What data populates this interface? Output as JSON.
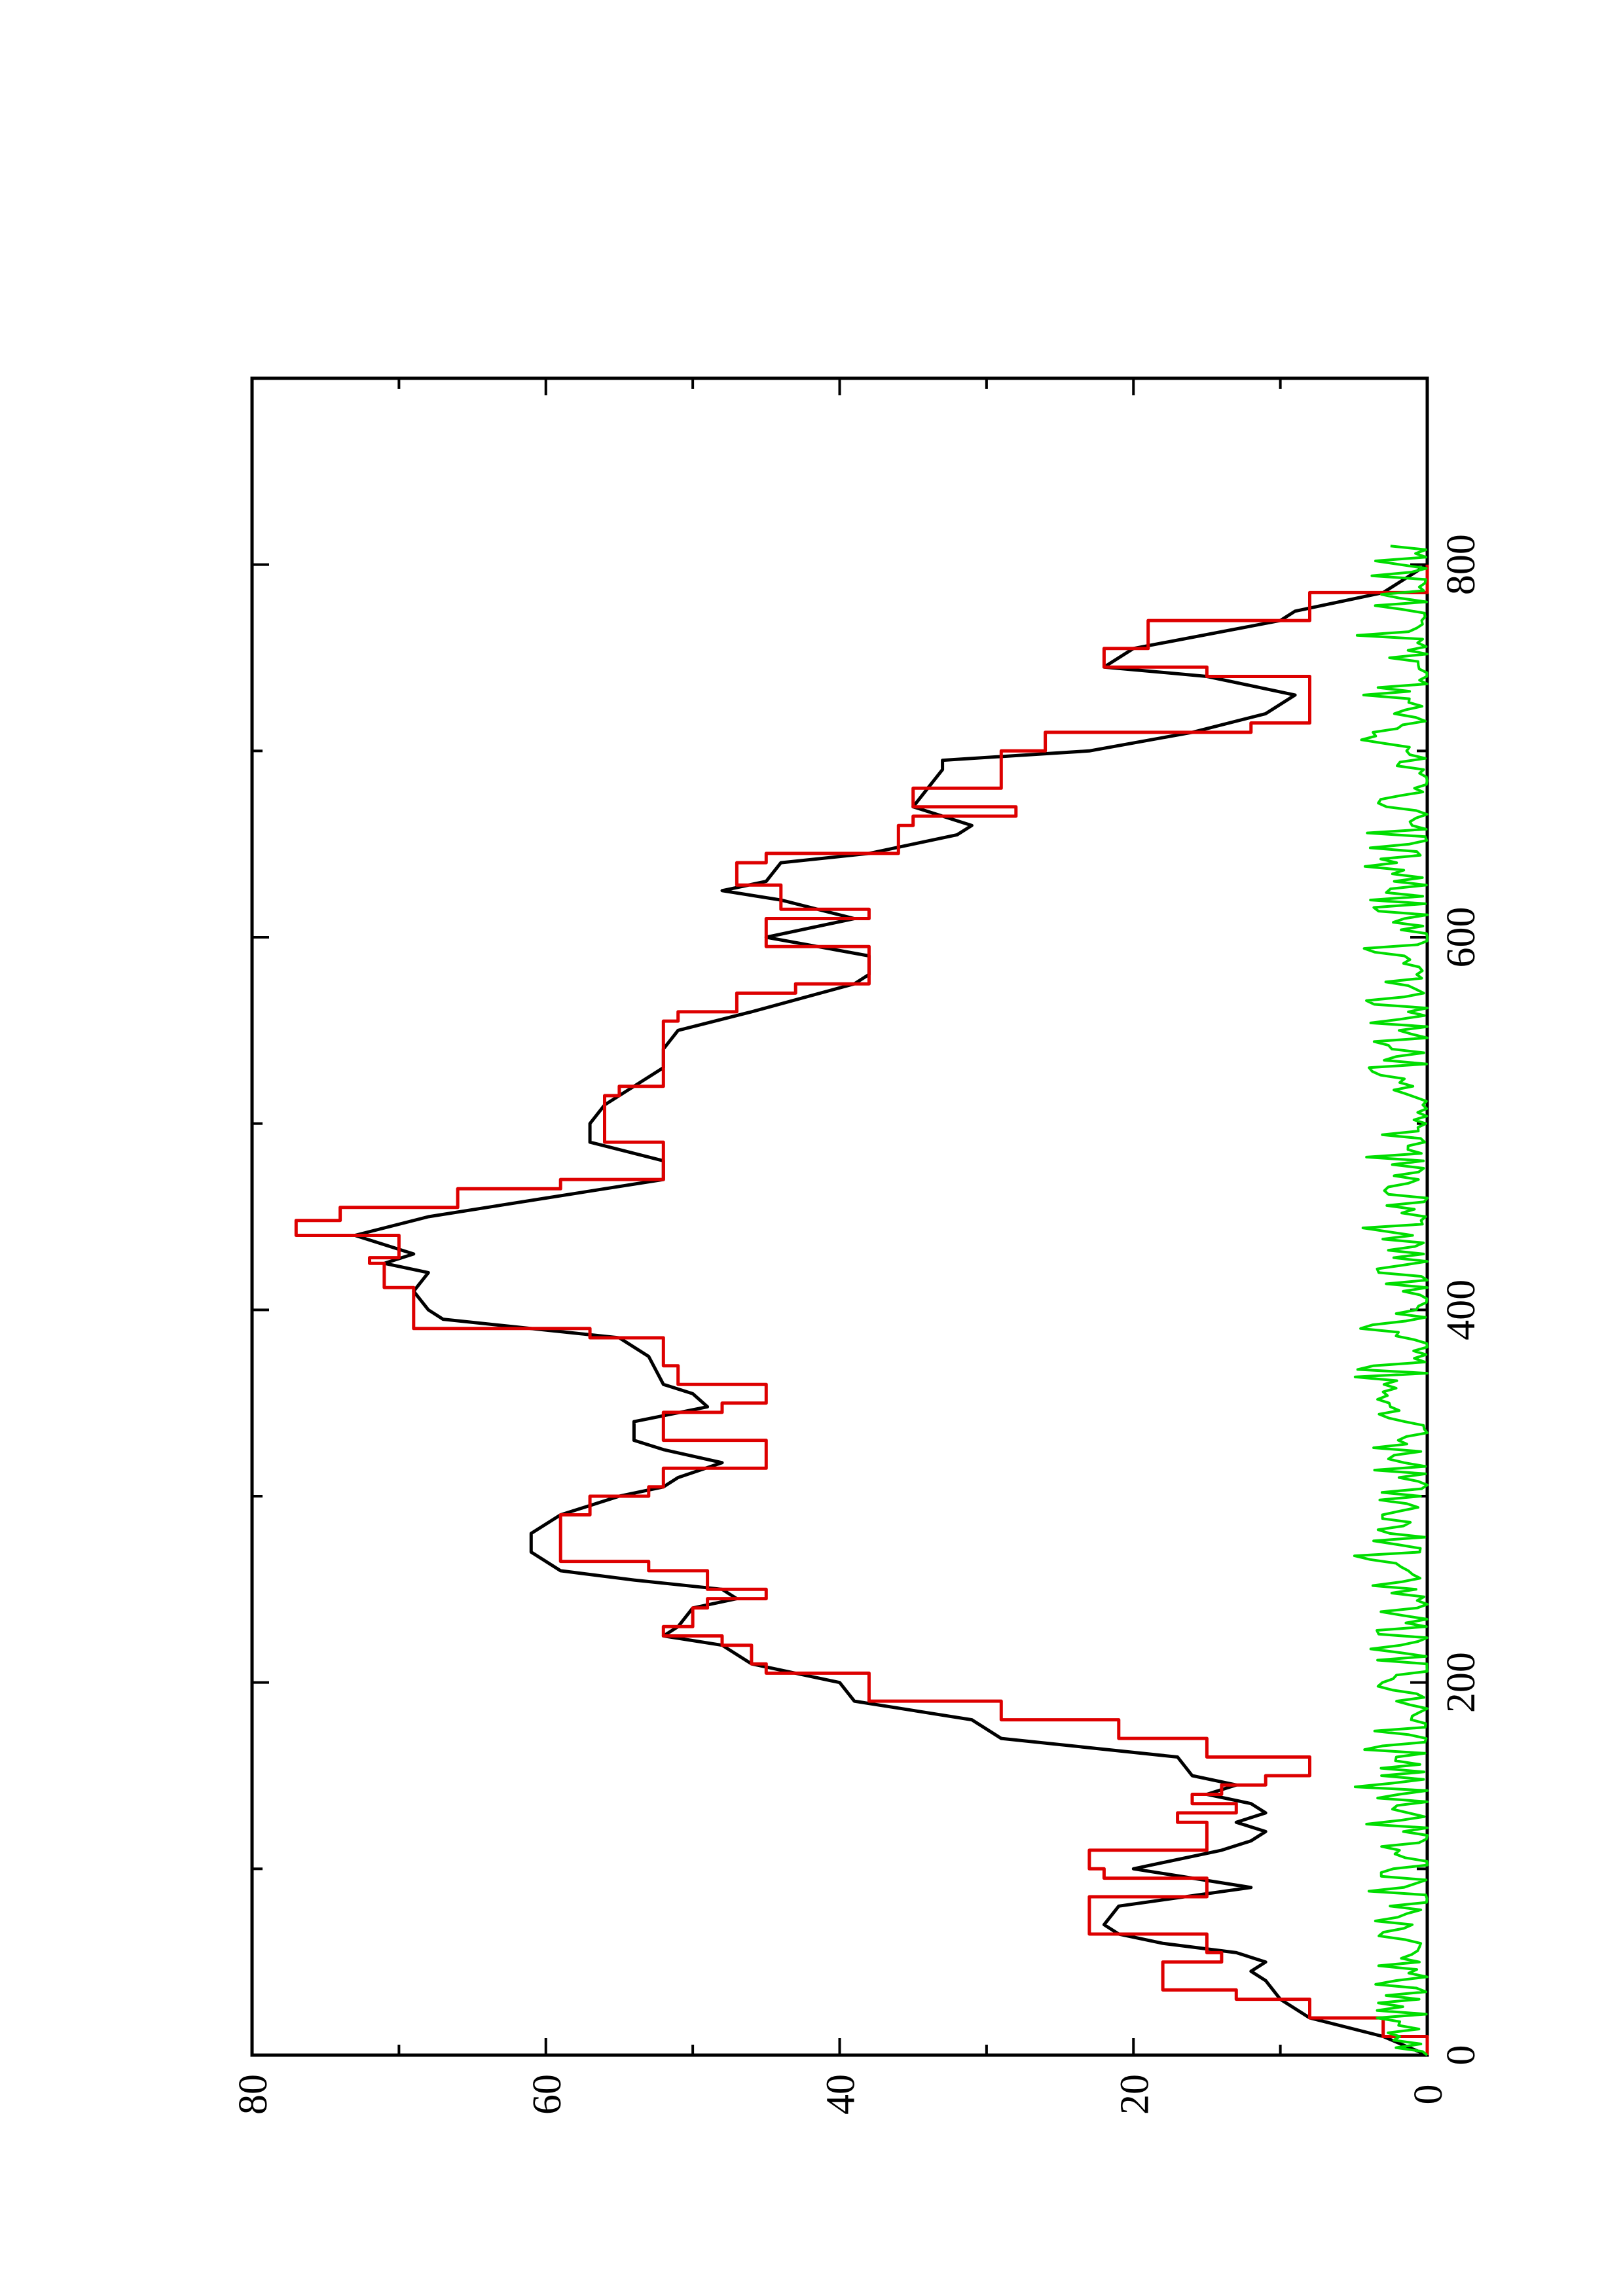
{
  "chart_data": {
    "type": "line",
    "orientation": "rotated-90-counterclockwise",
    "title": "",
    "xlabel": "",
    "ylabel": "",
    "xlim": [
      0,
      900
    ],
    "ylim": [
      0,
      80
    ],
    "x_ticks": [
      0,
      200,
      400,
      600,
      800
    ],
    "y_ticks": [
      0,
      20,
      40,
      60,
      80
    ],
    "x_tick_labels": [
      "0",
      "200",
      "400",
      "600",
      "800"
    ],
    "y_tick_labels": [
      "0",
      "20",
      "40",
      "60",
      "80"
    ],
    "grid": false,
    "legend": "none",
    "series": [
      {
        "color": "#000000",
        "style": "smooth",
        "points": [
          [
            0,
            0
          ],
          [
            10,
            3
          ],
          [
            20,
            8
          ],
          [
            30,
            10
          ],
          [
            40,
            11
          ],
          [
            45,
            12
          ],
          [
            50,
            11
          ],
          [
            55,
            13
          ],
          [
            60,
            18
          ],
          [
            65,
            21
          ],
          [
            70,
            22
          ],
          [
            80,
            21
          ],
          [
            90,
            12
          ],
          [
            100,
            20
          ],
          [
            110,
            14
          ],
          [
            115,
            12
          ],
          [
            120,
            11
          ],
          [
            125,
            13
          ],
          [
            130,
            11
          ],
          [
            135,
            12
          ],
          [
            140,
            15
          ],
          [
            145,
            13
          ],
          [
            150,
            16
          ],
          [
            160,
            17
          ],
          [
            170,
            29
          ],
          [
            180,
            31
          ],
          [
            190,
            39
          ],
          [
            200,
            40
          ],
          [
            210,
            46
          ],
          [
            220,
            48
          ],
          [
            225,
            52
          ],
          [
            230,
            51
          ],
          [
            240,
            50
          ],
          [
            245,
            47
          ],
          [
            250,
            48
          ],
          [
            255,
            54
          ],
          [
            260,
            59
          ],
          [
            270,
            61
          ],
          [
            280,
            61
          ],
          [
            290,
            59
          ],
          [
            300,
            55
          ],
          [
            305,
            52
          ],
          [
            310,
            51
          ],
          [
            318,
            48
          ],
          [
            325,
            52
          ],
          [
            330,
            54
          ],
          [
            340,
            54
          ],
          [
            348,
            49
          ],
          [
            355,
            50
          ],
          [
            360,
            52
          ],
          [
            375,
            53
          ],
          [
            385,
            55
          ],
          [
            395,
            67
          ],
          [
            400,
            68
          ],
          [
            410,
            69
          ],
          [
            420,
            68
          ],
          [
            425,
            71
          ],
          [
            430,
            69
          ],
          [
            440,
            73
          ],
          [
            450,
            68
          ],
          [
            460,
            60
          ],
          [
            470,
            52
          ],
          [
            480,
            52
          ],
          [
            490,
            57
          ],
          [
            500,
            57
          ],
          [
            510,
            56
          ],
          [
            520,
            54
          ],
          [
            530,
            52
          ],
          [
            540,
            52
          ],
          [
            550,
            51
          ],
          [
            560,
            46
          ],
          [
            575,
            39
          ],
          [
            580,
            38
          ],
          [
            590,
            38
          ],
          [
            600,
            45
          ],
          [
            610,
            39
          ],
          [
            620,
            44
          ],
          [
            625,
            48
          ],
          [
            630,
            45
          ],
          [
            640,
            44
          ],
          [
            645,
            38
          ],
          [
            650,
            35
          ],
          [
            655,
            32
          ],
          [
            660,
            31
          ],
          [
            670,
            35
          ],
          [
            680,
            34
          ],
          [
            690,
            33
          ],
          [
            695,
            33
          ],
          [
            700,
            23
          ],
          [
            710,
            16
          ],
          [
            720,
            11
          ],
          [
            730,
            9
          ],
          [
            740,
            15
          ],
          [
            745,
            22
          ],
          [
            755,
            20
          ],
          [
            770,
            10
          ],
          [
            775,
            9
          ],
          [
            785,
            3
          ],
          [
            800,
            0
          ]
        ]
      },
      {
        "color": "#dd0000",
        "style": "step",
        "points": [
          [
            0,
            0
          ],
          [
            10,
            3
          ],
          [
            20,
            8
          ],
          [
            30,
            13
          ],
          [
            35,
            18
          ],
          [
            50,
            14
          ],
          [
            55,
            15
          ],
          [
            65,
            23
          ],
          [
            80,
            23
          ],
          [
            85,
            15
          ],
          [
            95,
            22
          ],
          [
            100,
            23
          ],
          [
            110,
            15
          ],
          [
            120,
            15
          ],
          [
            125,
            17
          ],
          [
            130,
            13
          ],
          [
            135,
            16
          ],
          [
            140,
            14
          ],
          [
            145,
            11
          ],
          [
            150,
            8
          ],
          [
            160,
            15
          ],
          [
            170,
            21
          ],
          [
            180,
            29
          ],
          [
            190,
            38
          ],
          [
            200,
            38
          ],
          [
            205,
            45
          ],
          [
            210,
            46
          ],
          [
            220,
            48
          ],
          [
            225,
            52
          ],
          [
            230,
            50
          ],
          [
            240,
            49
          ],
          [
            245,
            45
          ],
          [
            250,
            49
          ],
          [
            260,
            53
          ],
          [
            265,
            59
          ],
          [
            280,
            59
          ],
          [
            290,
            57
          ],
          [
            300,
            53
          ],
          [
            305,
            52
          ],
          [
            315,
            45
          ],
          [
            320,
            45
          ],
          [
            330,
            52
          ],
          [
            340,
            52
          ],
          [
            345,
            48
          ],
          [
            350,
            45
          ],
          [
            360,
            51
          ],
          [
            370,
            52
          ],
          [
            375,
            52
          ],
          [
            385,
            57
          ],
          [
            390,
            69
          ],
          [
            410,
            69
          ],
          [
            412,
            71
          ],
          [
            425,
            72
          ],
          [
            428,
            70
          ],
          [
            440,
            77
          ],
          [
            448,
            74
          ],
          [
            455,
            66
          ],
          [
            465,
            59
          ],
          [
            470,
            52
          ],
          [
            480,
            52
          ],
          [
            490,
            56
          ],
          [
            510,
            56
          ],
          [
            515,
            55
          ],
          [
            520,
            52
          ],
          [
            550,
            52
          ],
          [
            555,
            51
          ],
          [
            560,
            47
          ],
          [
            570,
            43
          ],
          [
            575,
            38
          ],
          [
            590,
            38
          ],
          [
            595,
            45
          ],
          [
            605,
            45
          ],
          [
            610,
            38
          ],
          [
            615,
            44
          ],
          [
            625,
            44
          ],
          [
            628,
            47
          ],
          [
            640,
            45
          ],
          [
            645,
            36
          ],
          [
            660,
            35
          ],
          [
            665,
            28
          ],
          [
            670,
            35
          ],
          [
            680,
            29
          ],
          [
            695,
            29
          ],
          [
            700,
            26
          ],
          [
            710,
            12
          ],
          [
            715,
            8
          ],
          [
            730,
            8
          ],
          [
            740,
            15
          ],
          [
            745,
            22
          ],
          [
            755,
            19
          ],
          [
            770,
            8
          ],
          [
            785,
            0
          ],
          [
            800,
            0
          ]
        ]
      },
      {
        "color": "#00dd00",
        "style": "noise",
        "range": [
          0,
          5
        ],
        "x_range": [
          0,
          810
        ]
      }
    ]
  }
}
